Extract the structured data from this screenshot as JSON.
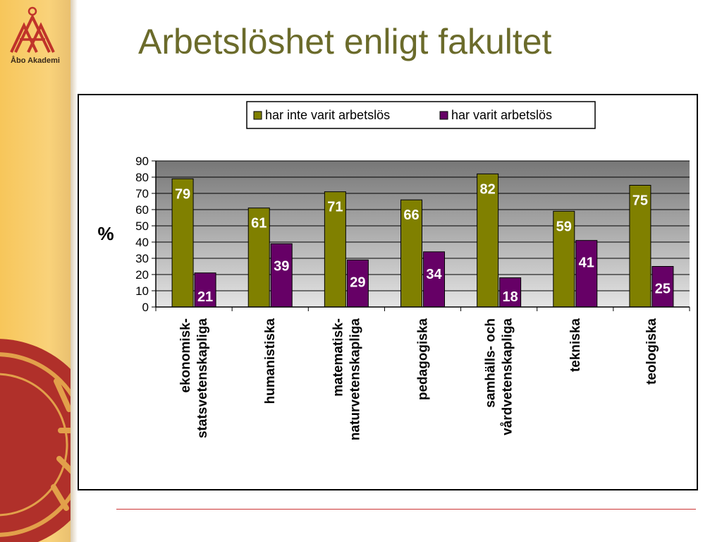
{
  "sidebar": {
    "logo_text": "Åbo Akademi",
    "colors": {
      "background": "#f7c65a",
      "seal": "#b0302a"
    }
  },
  "slide": {
    "title": "Arbetslöshet enligt fakultet"
  },
  "chart_data": {
    "type": "bar",
    "ylabel": "%",
    "ylim": [
      0,
      90
    ],
    "yticks": [
      0,
      10,
      20,
      30,
      40,
      50,
      60,
      70,
      80,
      90
    ],
    "legend_position": "top",
    "grid": true,
    "categories": [
      [
        "ekonomisk-",
        "statsvetenskapliga"
      ],
      [
        "humanistiska"
      ],
      [
        "matematisk-",
        "naturvetenskapliga"
      ],
      [
        "pedagogiska"
      ],
      [
        "samhälls- och",
        "vårdvetenskapliga"
      ],
      [
        "tekniska"
      ],
      [
        "teologiska"
      ]
    ],
    "series": [
      {
        "name": "har inte varit arbetslös",
        "color": "#808000",
        "values": [
          79,
          61,
          71,
          66,
          82,
          59,
          75
        ]
      },
      {
        "name": "har varit arbetslös",
        "color": "#660066",
        "values": [
          21,
          39,
          29,
          34,
          18,
          41,
          25
        ]
      }
    ]
  }
}
